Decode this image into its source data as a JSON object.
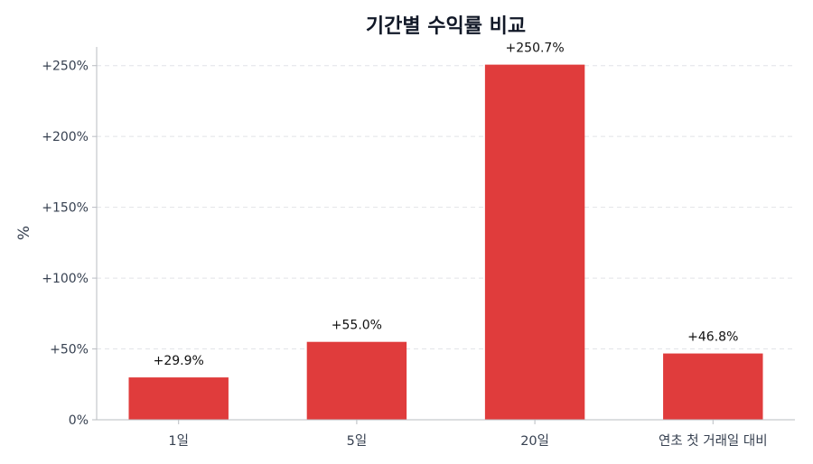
{
  "chart_data": {
    "type": "bar",
    "title": "기간별 수익률 비교",
    "xlabel": "",
    "ylabel": "%",
    "categories": [
      "1일",
      "5일",
      "20일",
      "연초 첫 거래일 대비"
    ],
    "values": [
      29.9,
      55.0,
      250.7,
      46.8
    ],
    "data_labels": [
      "+29.9%",
      "+55.0%",
      "+250.7%",
      "+46.8%"
    ],
    "ylim": [
      0,
      263.2
    ],
    "y_ticks": [
      0,
      50,
      100,
      150,
      200,
      250
    ],
    "y_tick_labels": [
      "0%",
      "+50%",
      "+100%",
      "+150%",
      "+200%",
      "+250%"
    ],
    "grid": {
      "axis": "y",
      "style": "dashed"
    },
    "legend": "none",
    "bar_color": "#e03c3c"
  }
}
